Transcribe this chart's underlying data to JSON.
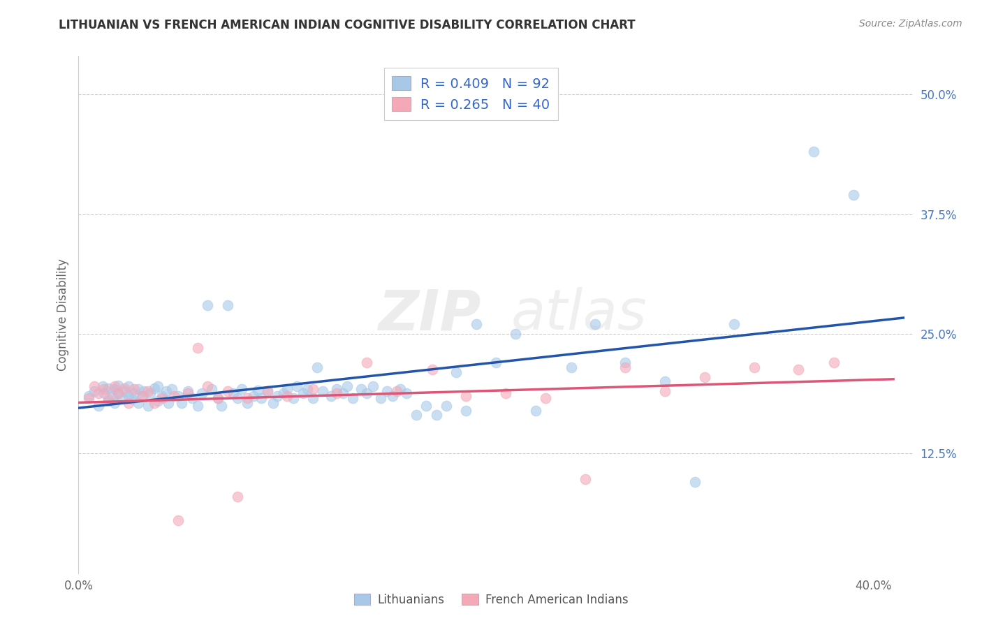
{
  "title": "LITHUANIAN VS FRENCH AMERICAN INDIAN COGNITIVE DISABILITY CORRELATION CHART",
  "source": "Source: ZipAtlas.com",
  "ylabel": "Cognitive Disability",
  "ytick_labels": [
    "12.5%",
    "25.0%",
    "37.5%",
    "50.0%"
  ],
  "ytick_values": [
    0.125,
    0.25,
    0.375,
    0.5
  ],
  "xlim": [
    0.0,
    0.42
  ],
  "ylim": [
    0.0,
    0.54
  ],
  "blue_R": 0.409,
  "blue_N": 92,
  "pink_R": 0.265,
  "pink_N": 40,
  "blue_color": "#a8c8e8",
  "pink_color": "#f4a8b8",
  "blue_line_color": "#2255aa",
  "pink_line_color": "#dd5577",
  "legend_label_blue": "Lithuanians",
  "legend_label_pink": "French American Indians",
  "watermark_zip": "ZIP",
  "watermark_atlas": "atlas",
  "blue_scatter_x": [
    0.005,
    0.008,
    0.01,
    0.012,
    0.013,
    0.015,
    0.015,
    0.017,
    0.018,
    0.018,
    0.02,
    0.02,
    0.022,
    0.023,
    0.025,
    0.025,
    0.027,
    0.028,
    0.03,
    0.03,
    0.032,
    0.033,
    0.035,
    0.036,
    0.038,
    0.04,
    0.04,
    0.042,
    0.044,
    0.045,
    0.047,
    0.05,
    0.052,
    0.055,
    0.057,
    0.06,
    0.062,
    0.065,
    0.067,
    0.07,
    0.072,
    0.075,
    0.078,
    0.08,
    0.082,
    0.085,
    0.088,
    0.09,
    0.092,
    0.095,
    0.098,
    0.1,
    0.103,
    0.105,
    0.108,
    0.11,
    0.113,
    0.115,
    0.118,
    0.12,
    0.123,
    0.127,
    0.13,
    0.133,
    0.135,
    0.138,
    0.142,
    0.145,
    0.148,
    0.152,
    0.155,
    0.158,
    0.162,
    0.165,
    0.17,
    0.175,
    0.18,
    0.185,
    0.19,
    0.195,
    0.2,
    0.21,
    0.22,
    0.23,
    0.248,
    0.26,
    0.275,
    0.295,
    0.31,
    0.33,
    0.37,
    0.39
  ],
  "blue_scatter_y": [
    0.185,
    0.19,
    0.175,
    0.195,
    0.188,
    0.193,
    0.18,
    0.185,
    0.192,
    0.178,
    0.188,
    0.196,
    0.183,
    0.19,
    0.185,
    0.195,
    0.182,
    0.188,
    0.178,
    0.192,
    0.185,
    0.19,
    0.175,
    0.188,
    0.193,
    0.18,
    0.195,
    0.185,
    0.19,
    0.178,
    0.192,
    0.185,
    0.178,
    0.19,
    0.183,
    0.175,
    0.188,
    0.28,
    0.192,
    0.183,
    0.175,
    0.28,
    0.188,
    0.183,
    0.192,
    0.178,
    0.185,
    0.191,
    0.183,
    0.19,
    0.178,
    0.185,
    0.188,
    0.192,
    0.183,
    0.195,
    0.188,
    0.192,
    0.183,
    0.215,
    0.19,
    0.185,
    0.192,
    0.188,
    0.195,
    0.183,
    0.192,
    0.188,
    0.195,
    0.183,
    0.19,
    0.185,
    0.192,
    0.188,
    0.165,
    0.175,
    0.165,
    0.175,
    0.21,
    0.17,
    0.26,
    0.22,
    0.25,
    0.17,
    0.215,
    0.26,
    0.22,
    0.2,
    0.095,
    0.26,
    0.44,
    0.395
  ],
  "pink_scatter_x": [
    0.005,
    0.008,
    0.01,
    0.013,
    0.015,
    0.018,
    0.02,
    0.023,
    0.025,
    0.028,
    0.032,
    0.035,
    0.038,
    0.042,
    0.048,
    0.055,
    0.06,
    0.065,
    0.07,
    0.075,
    0.085,
    0.095,
    0.105,
    0.118,
    0.13,
    0.145,
    0.16,
    0.178,
    0.195,
    0.215,
    0.235,
    0.255,
    0.275,
    0.295,
    0.315,
    0.34,
    0.362,
    0.38,
    0.05,
    0.08
  ],
  "pink_scatter_y": [
    0.183,
    0.195,
    0.188,
    0.192,
    0.182,
    0.195,
    0.188,
    0.193,
    0.178,
    0.192,
    0.185,
    0.19,
    0.178,
    0.183,
    0.185,
    0.188,
    0.235,
    0.195,
    0.183,
    0.19,
    0.183,
    0.19,
    0.185,
    0.192,
    0.188,
    0.22,
    0.19,
    0.213,
    0.185,
    0.188,
    0.183,
    0.098,
    0.215,
    0.19,
    0.205,
    0.215,
    0.213,
    0.22,
    0.055,
    0.08
  ]
}
